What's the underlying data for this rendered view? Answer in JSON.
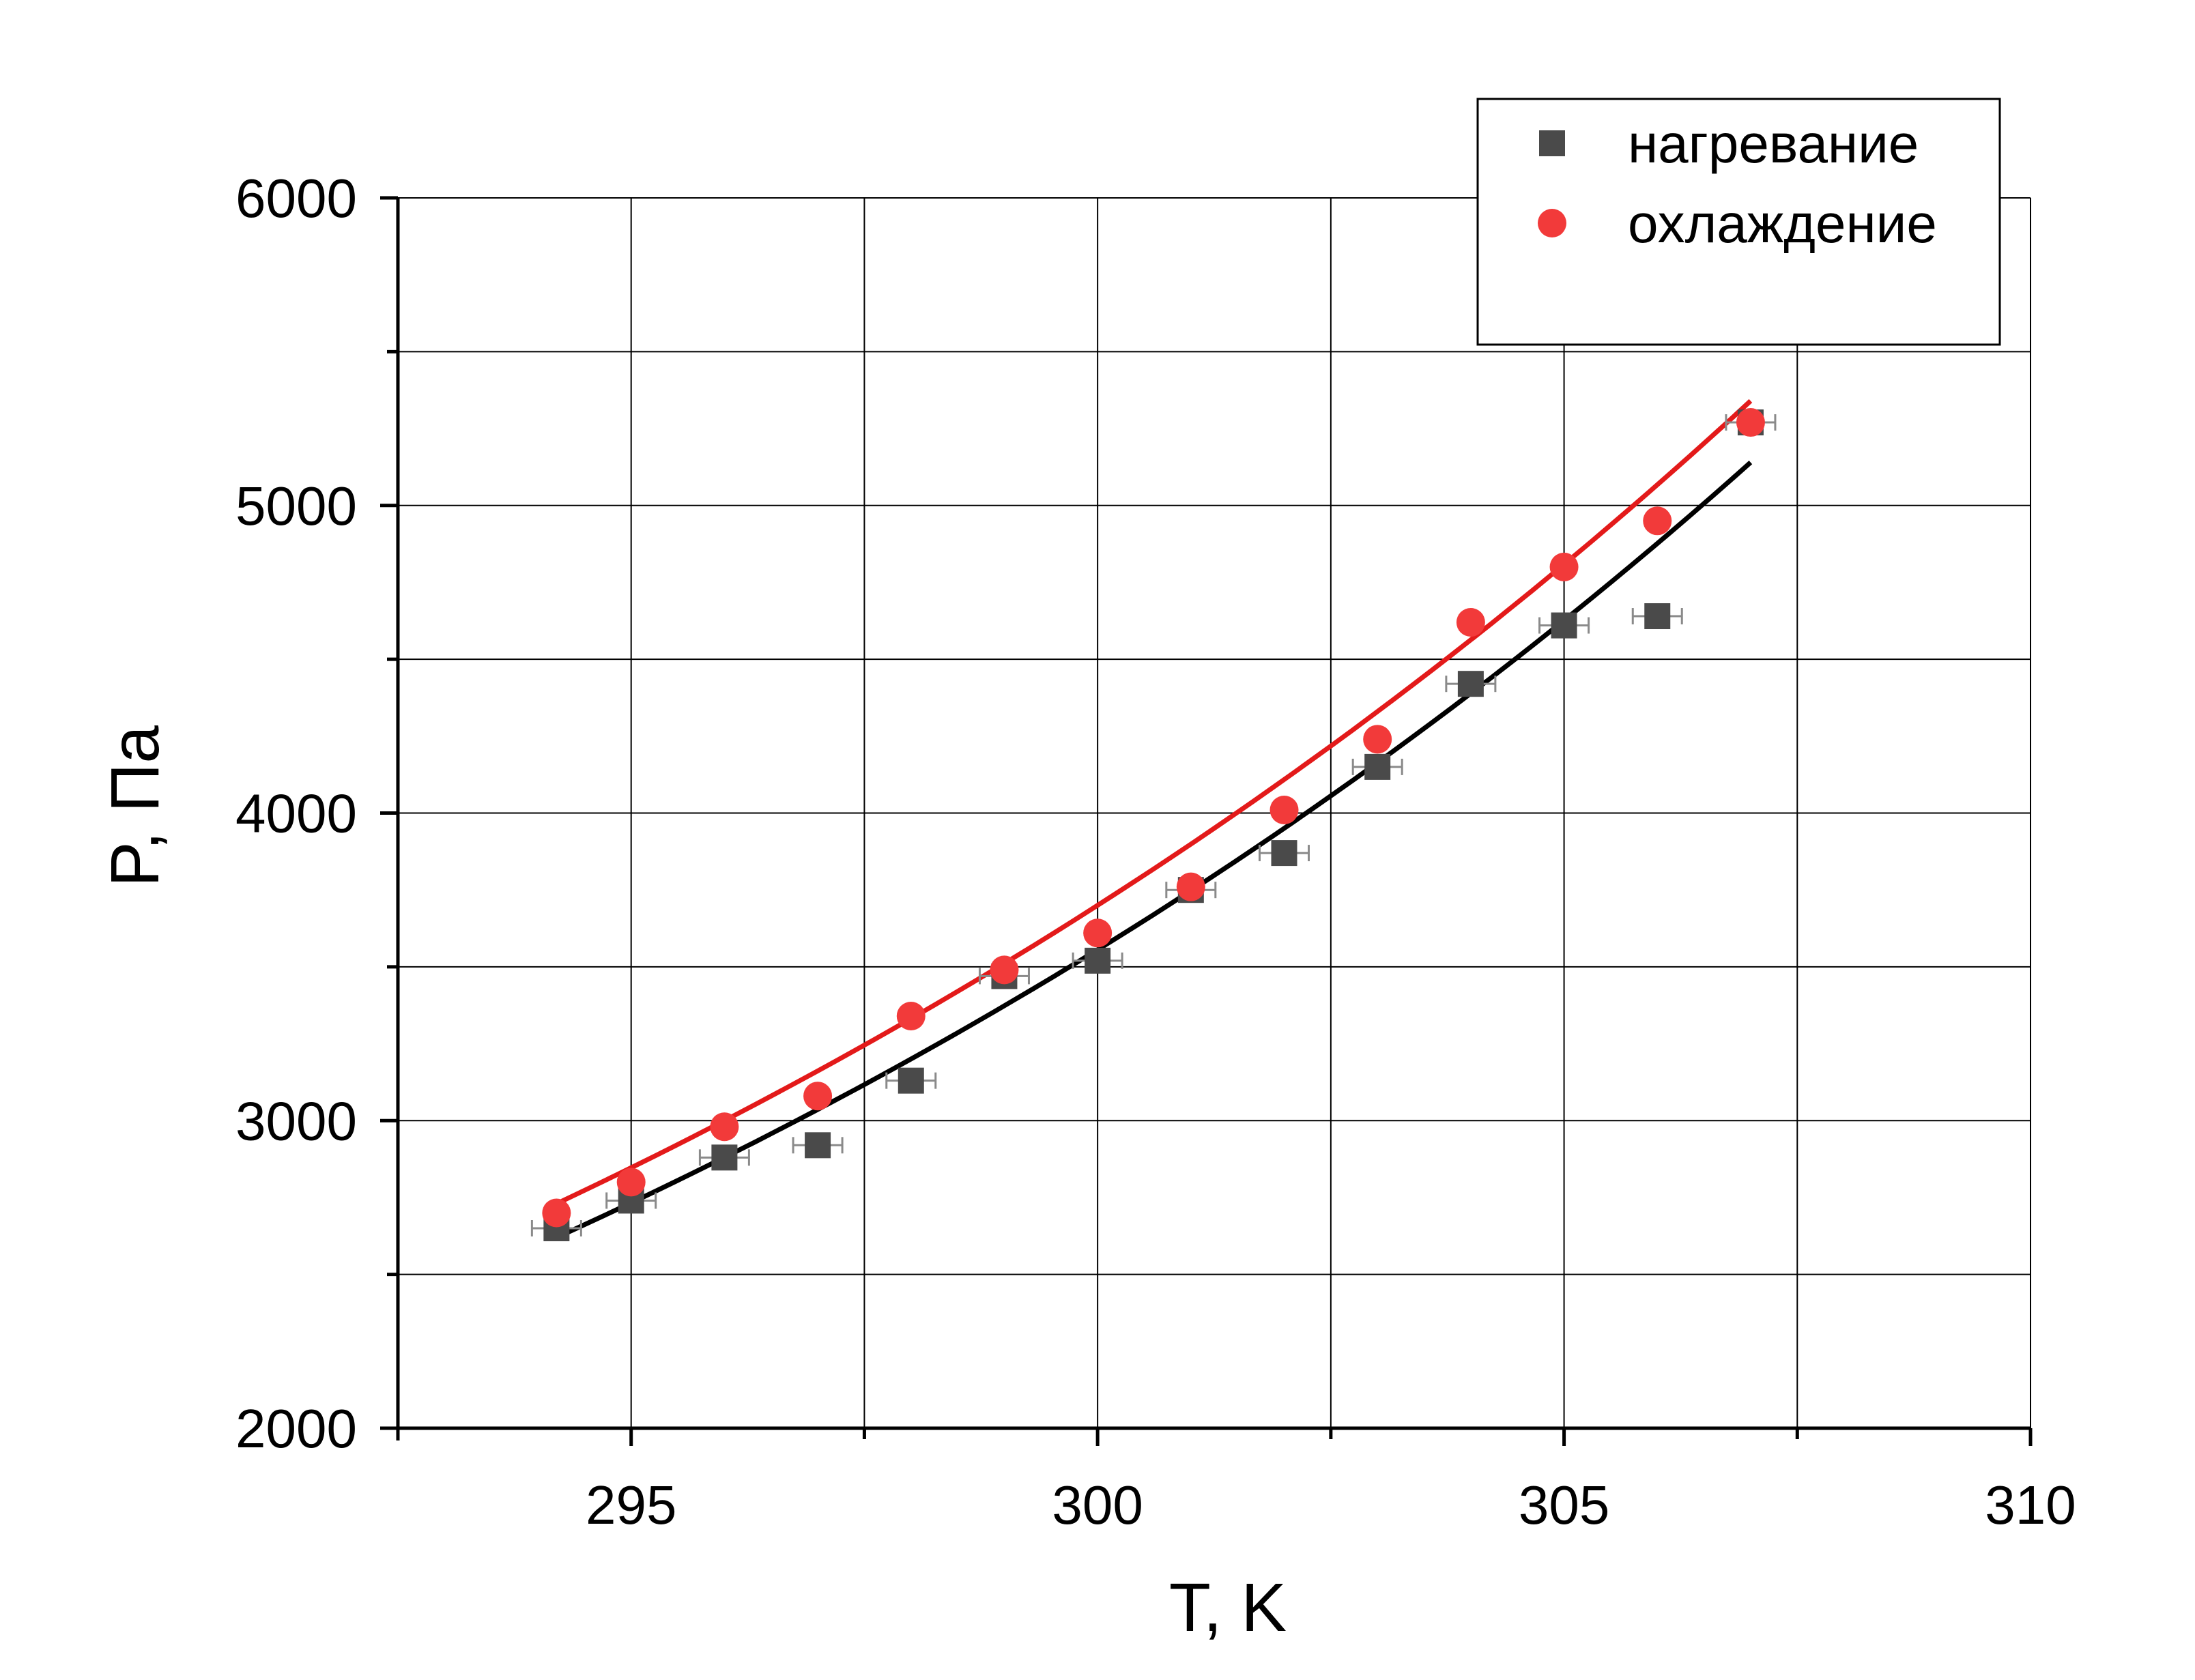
{
  "chart_data": {
    "type": "scatter",
    "xlabel": "T, K",
    "ylabel": "P, Па",
    "xlim": [
      292.5,
      310
    ],
    "ylim": [
      2000,
      6000
    ],
    "x_ticks": [
      295,
      300,
      305,
      310
    ],
    "y_ticks": [
      2000,
      3000,
      4000,
      5000,
      6000
    ],
    "x_minor_ticks": [
      292.5,
      297.5,
      302.5,
      307.5
    ],
    "y_minor_ticks": [
      2500,
      3500,
      4500,
      5500
    ],
    "grid": true,
    "legend_position": "top-right",
    "series": [
      {
        "name": "нагревание",
        "marker": "square",
        "color": "#4a4a4a",
        "fit_color": "#000000",
        "x": [
          294.2,
          295,
          296,
          297,
          298,
          299,
          300,
          301,
          302,
          303,
          304,
          305,
          306,
          307
        ],
        "y": [
          2650,
          2740,
          2880,
          2920,
          3130,
          3470,
          3520,
          3750,
          3870,
          4150,
          4420,
          4610,
          4640,
          5270
        ],
        "fit": {
          "x_start": 294.2,
          "x_end": 307,
          "y_start": 2620,
          "y_end": 5140
        }
      },
      {
        "name": "охлаждение",
        "marker": "circle",
        "color": "#f23a3a",
        "fit_color": "#e31a1a",
        "x": [
          294.2,
          295,
          296,
          297,
          298,
          299,
          300,
          301,
          302,
          303,
          304,
          305,
          306,
          307
        ],
        "y": [
          2700,
          2800,
          2980,
          3080,
          3340,
          3490,
          3610,
          3760,
          4010,
          4240,
          4620,
          4800,
          4950,
          5270
        ],
        "fit": {
          "x_start": 294.2,
          "x_end": 307,
          "y_start": 2730,
          "y_end": 5340
        }
      }
    ]
  }
}
